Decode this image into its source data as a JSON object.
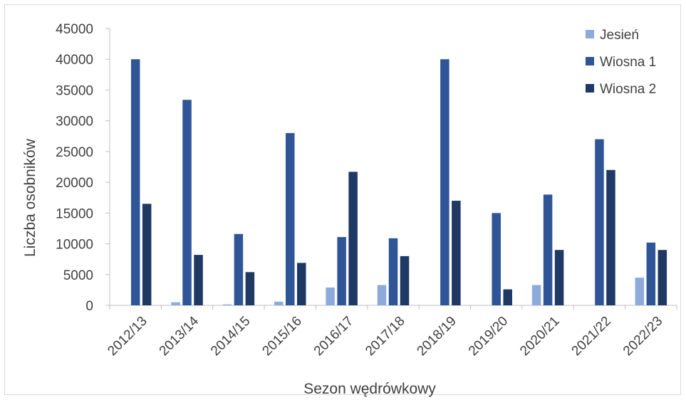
{
  "chart_data": {
    "type": "bar",
    "title": "",
    "xlabel": "Sezon wędrówkowy",
    "ylabel": "Liczba osobników",
    "ylim": [
      0,
      45000
    ],
    "yticks": [
      0,
      5000,
      10000,
      15000,
      20000,
      25000,
      30000,
      35000,
      40000,
      45000
    ],
    "grid": false,
    "legend_position": "top-right",
    "categories": [
      "2012/13",
      "2013/14",
      "2014/15",
      "2015/16",
      "2016/17",
      "2017/18",
      "2018/19",
      "2019/20",
      "2020/21",
      "2021/22",
      "2022/23"
    ],
    "series": [
      {
        "name": "Jesień",
        "color": "#8eaadb",
        "values": [
          0,
          500,
          150,
          600,
          2900,
          3300,
          0,
          0,
          3300,
          0,
          4500
        ]
      },
      {
        "name": "Wiosna 1",
        "color": "#2f5597",
        "values": [
          40000,
          33400,
          11600,
          28000,
          11100,
          10900,
          40000,
          15000,
          18000,
          27000,
          10200
        ]
      },
      {
        "name": "Wiosna 2",
        "color": "#203864",
        "values": [
          16500,
          8200,
          5400,
          6900,
          21700,
          8000,
          17000,
          2600,
          9000,
          22000,
          9000
        ]
      }
    ]
  }
}
